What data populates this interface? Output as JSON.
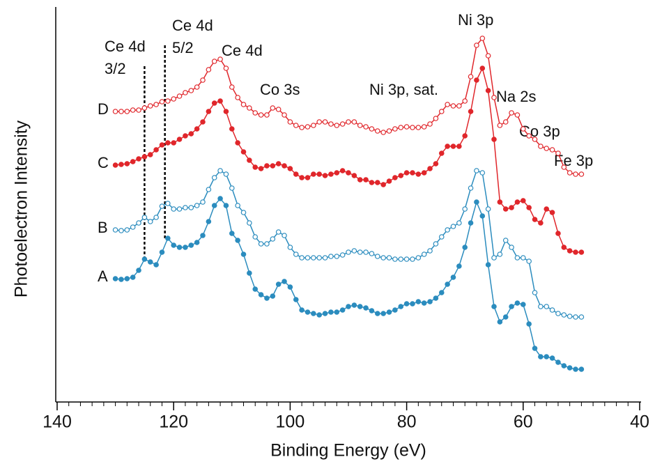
{
  "chart_data": {
    "type": "line",
    "xlabel": "Binding Energy (eV)",
    "ylabel": "Photoelectron Intensity",
    "xlim": [
      140,
      40
    ],
    "xticks": [
      140,
      120,
      100,
      80,
      60,
      40
    ],
    "xminorticks": [
      138,
      136,
      134,
      132,
      130,
      128,
      126,
      124,
      122,
      118,
      116,
      114,
      112,
      110,
      108,
      106,
      104,
      102,
      98,
      96,
      94,
      92,
      90,
      88,
      86,
      84,
      82,
      78,
      76,
      74,
      72,
      70,
      68,
      66,
      64,
      62,
      58,
      56,
      54,
      52,
      50,
      48,
      46,
      44,
      42
    ],
    "ylim": [
      0,
      565
    ],
    "reference_lines": [
      125,
      121.5
    ],
    "annotations": [
      [
        "Ce 4d",
        "3/2"
      ],
      [
        "Ce 4d",
        "5/2"
      ],
      [
        "Ce 4d"
      ],
      [
        "Co 3s"
      ],
      [
        "Ni 3p, sat."
      ],
      [
        "Ni 3p"
      ],
      [
        "Na 2s"
      ],
      [
        "Co 3p"
      ],
      [
        "Fe 3p"
      ]
    ],
    "x": [
      130,
      129,
      128,
      127,
      126,
      125,
      124,
      123,
      122,
      121,
      120,
      119,
      118,
      117,
      116,
      115,
      114,
      113,
      112,
      111,
      110,
      109,
      108,
      107,
      106,
      105,
      104,
      103,
      102,
      101,
      100,
      99,
      98,
      97,
      96,
      95,
      94,
      93,
      92,
      91,
      90,
      89,
      88,
      87,
      86,
      85,
      84,
      83,
      82,
      81,
      80,
      79,
      78,
      77,
      76,
      75,
      74,
      73,
      72,
      71,
      70,
      69,
      68,
      67,
      66,
      65,
      64,
      63,
      62,
      61,
      60,
      59,
      58,
      57,
      56,
      55,
      54,
      53,
      52,
      51,
      50
    ],
    "series": [
      {
        "name": "A",
        "color": "#2b8cbe",
        "marker": "filled",
        "values": [
          175,
          174,
          175,
          177,
          187,
          203,
          199,
          195,
          213,
          233,
          223,
          220,
          220,
          223,
          227,
          237,
          257,
          280,
          290,
          280,
          240,
          230,
          210,
          183,
          160,
          152,
          147,
          150,
          167,
          171,
          163,
          145,
          130,
          127,
          125,
          123,
          125,
          127,
          127,
          130,
          135,
          137,
          135,
          133,
          129,
          125,
          125,
          127,
          130,
          135,
          139,
          139,
          142,
          140,
          142,
          147,
          155,
          167,
          177,
          193,
          220,
          255,
          285,
          265,
          195,
          135,
          113,
          120,
          135,
          140,
          138,
          110,
          75,
          63,
          63,
          61,
          55,
          50,
          47,
          45,
          45
        ]
      },
      {
        "name": "B",
        "color": "#2b8cbe",
        "marker": "open",
        "values": [
          245,
          244,
          245,
          249,
          255,
          263,
          257,
          263,
          279,
          283,
          275,
          275,
          277,
          277,
          280,
          285,
          303,
          320,
          330,
          325,
          305,
          280,
          270,
          255,
          235,
          225,
          225,
          232,
          242,
          237,
          220,
          210,
          205,
          205,
          205,
          205,
          205,
          207,
          207,
          209,
          213,
          215,
          213,
          213,
          211,
          207,
          205,
          205,
          203,
          203,
          203,
          203,
          205,
          210,
          215,
          225,
          235,
          245,
          250,
          255,
          275,
          305,
          330,
          327,
          275,
          205,
          210,
          230,
          220,
          205,
          205,
          200,
          155,
          135,
          135,
          130,
          125,
          123,
          121,
          120,
          120
        ]
      },
      {
        "name": "C",
        "color": "#e0262b",
        "marker": "filled",
        "values": [
          338,
          339,
          340,
          343,
          347,
          350,
          353,
          360,
          367,
          370,
          370,
          375,
          380,
          383,
          390,
          400,
          415,
          427,
          430,
          415,
          390,
          370,
          357,
          345,
          335,
          333,
          337,
          337,
          340,
          337,
          333,
          325,
          320,
          320,
          325,
          325,
          323,
          325,
          327,
          330,
          327,
          323,
          317,
          317,
          313,
          313,
          310,
          315,
          320,
          323,
          327,
          327,
          325,
          327,
          333,
          340,
          355,
          365,
          365,
          365,
          380,
          415,
          460,
          477,
          445,
          375,
          285,
          275,
          277,
          285,
          287,
          277,
          260,
          255,
          275,
          270,
          240,
          220,
          215,
          213,
          213
        ]
      },
      {
        "name": "D",
        "color": "#e0262b",
        "marker": "open",
        "values": [
          415,
          415,
          415,
          417,
          417,
          420,
          423,
          425,
          429,
          430,
          433,
          437,
          442,
          445,
          450,
          460,
          475,
          487,
          490,
          477,
          450,
          435,
          425,
          420,
          413,
          410,
          410,
          420,
          418,
          410,
          400,
          395,
          392,
          393,
          395,
          400,
          400,
          397,
          395,
          397,
          400,
          400,
          395,
          393,
          390,
          387,
          385,
          387,
          390,
          392,
          393,
          392,
          392,
          393,
          397,
          405,
          415,
          425,
          423,
          423,
          430,
          465,
          510,
          520,
          495,
          435,
          395,
          400,
          413,
          410,
          390,
          380,
          375,
          365,
          362,
          360,
          355,
          335,
          327,
          325,
          325
        ]
      }
    ]
  }
}
